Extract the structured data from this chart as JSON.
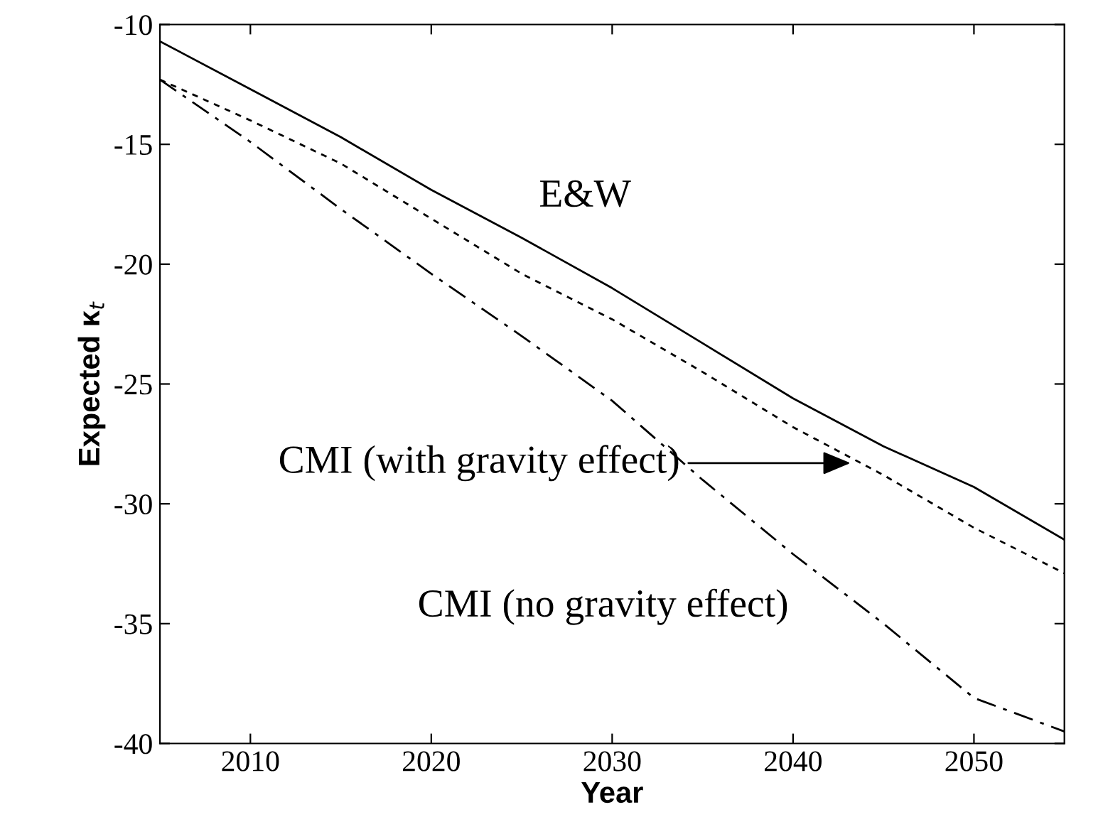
{
  "chart_data": {
    "type": "line",
    "xlabel": "Year",
    "ylabel": "Expected κ$_{t}$",
    "x": [
      2005,
      2010,
      2015,
      2020,
      2025,
      2030,
      2035,
      2040,
      2045,
      2050,
      2055
    ],
    "series": [
      {
        "name": "E&W",
        "color": "#000000",
        "line_style": "solid",
        "values": [
          -10.7,
          -12.7,
          -14.7,
          -16.9,
          -18.9,
          -21.0,
          -23.3,
          -25.6,
          -27.6,
          -29.3,
          -31.5
        ]
      },
      {
        "color": "#000000",
        "line_style": "dashed",
        "values": [
          -12.3,
          -14.0,
          -15.8,
          -18.1,
          -20.4,
          -22.3,
          -24.5,
          -26.8,
          -28.8,
          -31.0,
          -32.9
        ]
      },
      {
        "name": "CMI (no gravity effect)",
        "color": "#000000",
        "line_style": "dashdot",
        "values": [
          -12.3,
          -14.9,
          -17.7,
          -20.4,
          -23.0,
          -25.7,
          -29.0,
          -32.1,
          -35.0,
          -38.1,
          -39.5
        ]
      }
    ],
    "annotations": [
      "CMI (with gravity effect)"
    ],
    "xlim": [
      2005,
      2055
    ],
    "xticks": [
      2010,
      2020,
      2030,
      2040,
      2050
    ],
    "ylim": [
      -40,
      -10
    ],
    "yticks": [
      -40,
      -35,
      -30,
      -25,
      -20,
      -15,
      -10
    ],
    "grid": false,
    "legend": false
  }
}
